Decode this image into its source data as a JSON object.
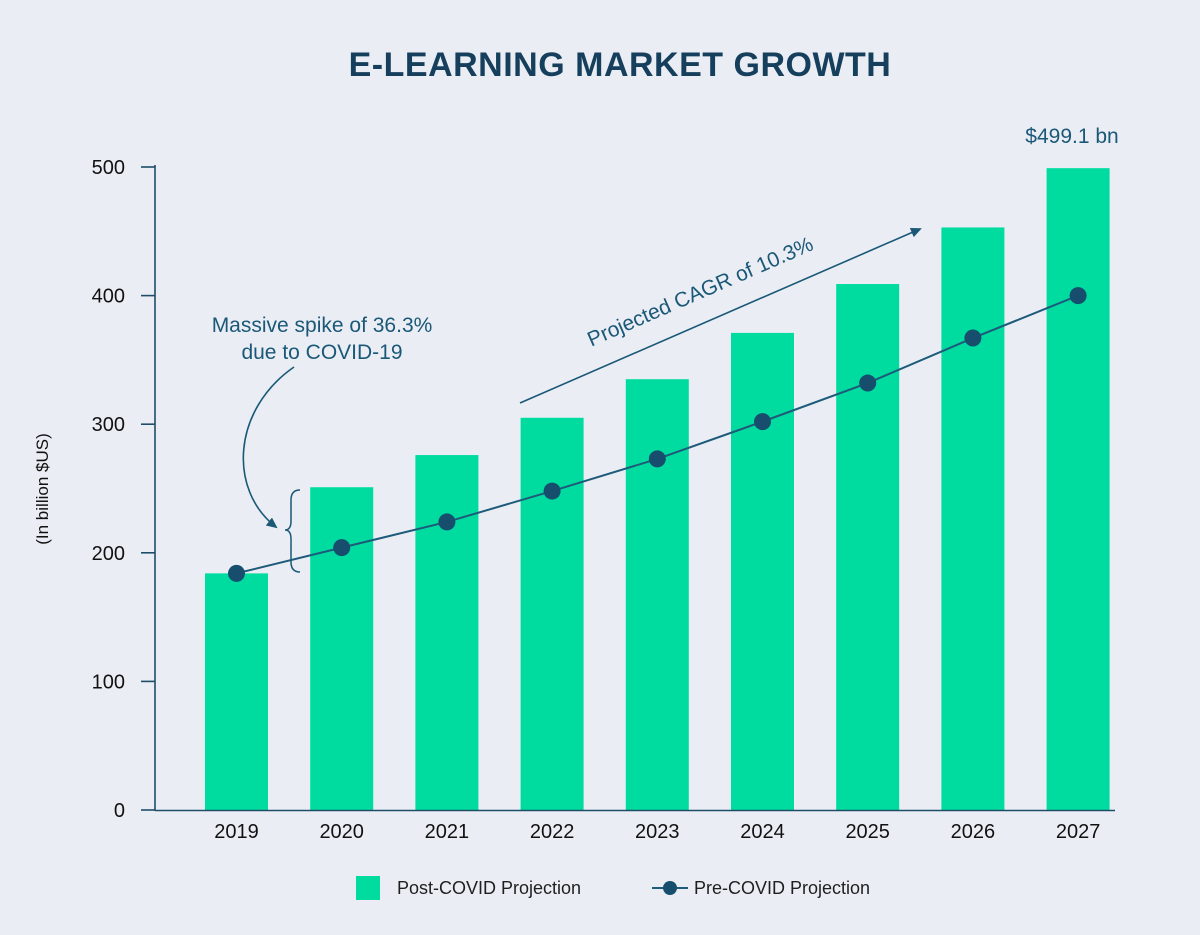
{
  "chart_data": {
    "type": "bar",
    "title": "E-LEARNING MARKET GROWTH",
    "ylabel": "(In billion $US)",
    "xlabel": "",
    "ylim": [
      0,
      500
    ],
    "yticks": [
      "0",
      "100",
      "200",
      "300",
      "400",
      "500"
    ],
    "yticks_values": [
      0,
      100,
      200,
      300,
      400,
      500
    ],
    "categories": [
      "2019",
      "2020",
      "2021",
      "2022",
      "2023",
      "2024",
      "2025",
      "2026",
      "2027"
    ],
    "series": [
      {
        "name": "Post-COVID Projection",
        "kind": "bar",
        "values": [
          184,
          251,
          276,
          305,
          335,
          371,
          409,
          453,
          499.1
        ]
      },
      {
        "name": "Pre-COVID Projection",
        "kind": "line-markers",
        "values": [
          184,
          204,
          224,
          248,
          273,
          302,
          332,
          367,
          400
        ]
      }
    ],
    "annotations": {
      "top_value": "$499.1 bn",
      "spike_line1": "Massive spike of 36.3%",
      "spike_line2": "due to COVID-19",
      "cagr": "Projected CAGR of 10.3%"
    },
    "legend_position": "bottom-center",
    "grid": false,
    "colors": {
      "bar": "#00dca0",
      "line": "#1e5a7a",
      "marker": "#174e6d",
      "axis": "#1e4d68",
      "title": "#153f5c",
      "background": "#eaeef4"
    }
  }
}
